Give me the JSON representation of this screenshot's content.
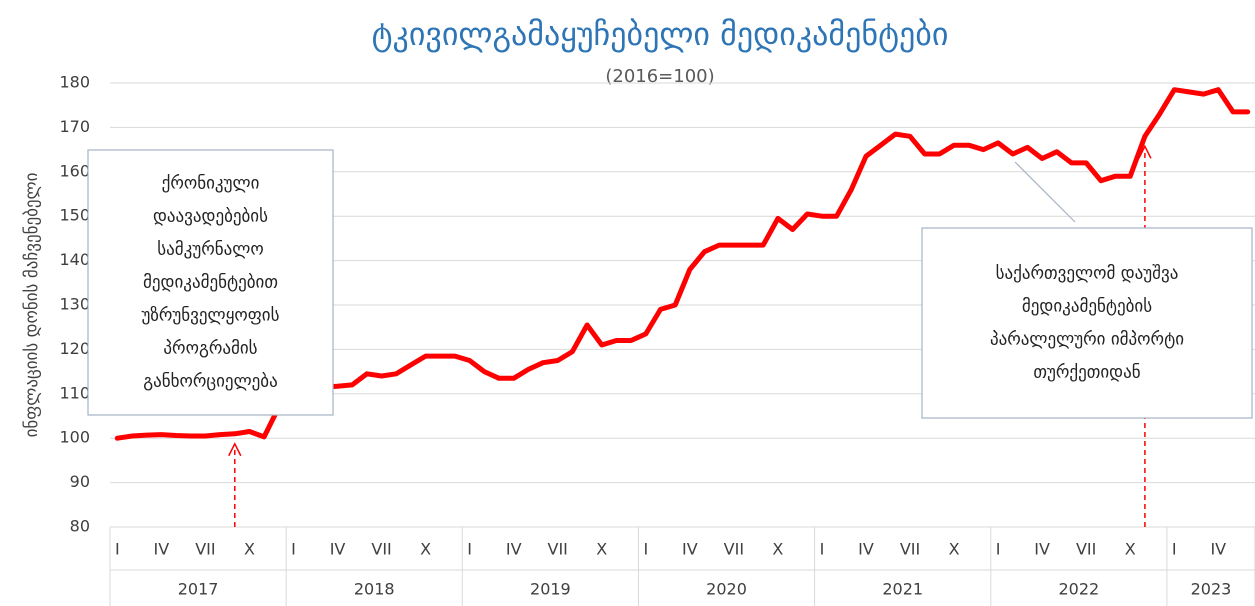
{
  "chart_data": {
    "type": "line",
    "title": "ტკივილგამაყუჩებელი მედიკამენტები",
    "subtitle": "(2016=100)",
    "y_label": "ინფლაციის დონის მაჩვენებელი",
    "categories": [
      "I",
      null,
      null,
      "IV",
      null,
      null,
      "VII",
      null,
      null,
      "X",
      null,
      null,
      "I",
      null,
      null,
      "IV",
      null,
      null,
      "VII",
      null,
      null,
      "X",
      null,
      null,
      "I",
      null,
      null,
      "IV",
      null,
      null,
      "VII",
      null,
      null,
      "X",
      null,
      null,
      "I",
      null,
      null,
      "IV",
      null,
      null,
      "VII",
      null,
      null,
      "X",
      null,
      null,
      "I",
      null,
      null,
      "IV",
      null,
      null,
      "VII",
      null,
      null,
      "X",
      null,
      null,
      "I",
      null,
      null,
      "IV",
      null,
      null,
      "VII",
      null,
      null,
      "X",
      null,
      null,
      "I",
      null,
      null,
      "IV",
      null,
      null
    ],
    "years": [
      {
        "name": "2017",
        "months": 12
      },
      {
        "name": "2018",
        "months": 12
      },
      {
        "name": "2019",
        "months": 12
      },
      {
        "name": "2020",
        "months": 12
      },
      {
        "name": "2021",
        "months": 12
      },
      {
        "name": "2022",
        "months": 12
      },
      {
        "name": "2023",
        "months": 6
      }
    ],
    "series": [
      {
        "color": "#ff0000",
        "values": [
          100,
          100.5,
          100.7,
          100.8,
          100.6,
          100.5,
          100.5,
          100.8,
          101,
          101.5,
          100.3,
          107,
          107,
          107,
          111.5,
          111.7,
          112,
          114.5,
          114,
          114.5,
          116.5,
          118.5,
          118.5,
          118.5,
          117.5,
          115,
          113.5,
          113.5,
          115.5,
          117,
          117.5,
          119.5,
          125.5,
          121,
          122,
          122,
          123.5,
          129,
          130,
          138,
          142,
          143.5,
          143.5,
          143.5,
          143.5,
          149.5,
          147,
          150.5,
          150,
          150,
          156,
          163.5,
          166,
          168.5,
          168,
          164,
          164,
          166,
          166,
          165,
          166.5,
          164,
          165.5,
          163,
          164.5,
          162,
          162,
          158,
          159,
          159,
          168,
          173,
          178.5,
          178,
          177.5,
          178.5,
          173.5,
          173.5
        ]
      }
    ],
    "ylim": [
      80,
      180
    ],
    "yticks": [
      80,
      90,
      100,
      110,
      120,
      130,
      140,
      150,
      160,
      170,
      180
    ],
    "grid": true,
    "annotations": [
      {
        "lines": [
          "ქრონიკული",
          "დაავადებების",
          "სამკურნალო",
          "მედიკამენტებით",
          "უზრუნველყოფის",
          "პროგრამის",
          "განხორციელება"
        ]
      },
      {
        "lines": [
          "საქართველომ დაუშვა",
          "მედიკამენტების",
          "პარალელური იმპორტი",
          "თურქეთიდან"
        ]
      }
    ]
  }
}
